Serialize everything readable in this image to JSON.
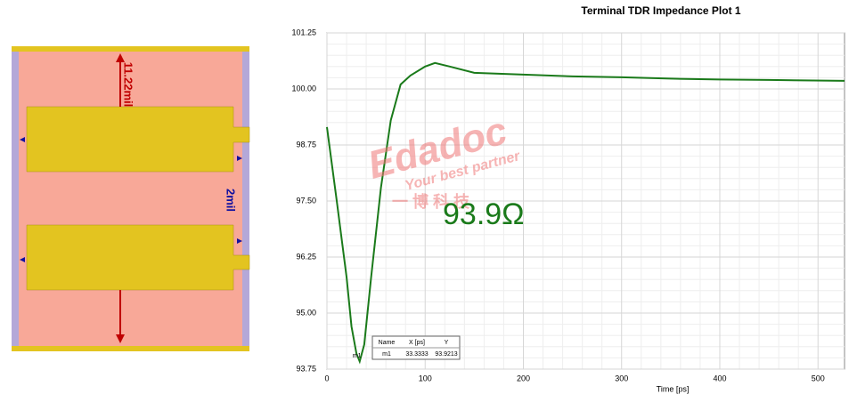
{
  "diagram": {
    "height_label": "11.22mil",
    "gap_label": "2mil"
  },
  "watermark": {
    "brand": "Edadoc",
    "slogan": "Your best partner",
    "chinese": "一 博 科 技"
  },
  "chart_data": {
    "type": "line",
    "title": "Terminal TDR Impedance Plot 1",
    "x_label": "Time [ps]",
    "annotation": "93.9Ω",
    "x": [
      0,
      10,
      20,
      25,
      30,
      33.3333,
      38,
      45,
      55,
      65,
      75,
      85,
      100,
      110,
      125,
      150,
      200,
      250,
      300,
      350,
      400,
      450,
      527
    ],
    "series": [
      {
        "name": "m1",
        "color": "#1a7a1a",
        "values": [
          99.15,
          97.5,
          95.8,
          94.7,
          94.1,
          93.9213,
          94.3,
          95.8,
          97.8,
          99.3,
          100.1,
          100.3,
          100.5,
          100.58,
          100.5,
          100.36,
          100.32,
          100.28,
          100.26,
          100.23,
          100.21,
          100.2,
          100.18
        ]
      }
    ],
    "xlim": [
      0,
      527
    ],
    "xticks": [
      0,
      100,
      200,
      300,
      400,
      500
    ],
    "ylim": [
      93.75,
      101.25
    ],
    "yticks": [
      93.75,
      {
        "value": 95,
        "label": "95.00"
      },
      96.25,
      {
        "value": 97.5,
        "label": "97.50"
      },
      98.75,
      {
        "value": 100,
        "label": "100.00"
      },
      101.25
    ],
    "grid": true,
    "marker_table": {
      "headers": [
        "Name",
        "X [ps]",
        "Y"
      ],
      "row": [
        "m1",
        "33.3333",
        "93.9213"
      ]
    }
  }
}
